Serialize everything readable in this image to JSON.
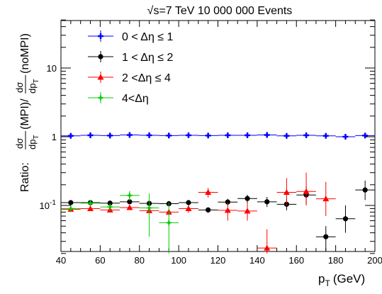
{
  "chart_data": {
    "type": "scatter",
    "title": "√s=7 TeV   10 000 000 Events",
    "xlabel": "p",
    "xlabel_sub": "T",
    "xlabel_unit": "(GeV)",
    "ylabel_prefix": "Ratio: ",
    "ylabel_mpi": "(MPI)/",
    "ylabel_nompi": "(noMPI)",
    "ylabel_frac_num": "dσ",
    "ylabel_frac_den": "dp",
    "ylabel_frac_sub": "T",
    "xlim": [
      40,
      200
    ],
    "ylim": [
      0.02,
      55
    ],
    "y_scale": "log",
    "x_ticks": [
      "40",
      "60",
      "80",
      "100",
      "120",
      "140",
      "160",
      "180",
      "200"
    ],
    "y_ticks": [
      "10",
      "1",
      "10"
    ],
    "y_tick_exp": "-1",
    "legend_position": "top-left",
    "series": [
      {
        "name": "0 < Δη ≤ 1",
        "color": "#0000ff",
        "marker": "cross",
        "x": [
          45,
          55,
          65,
          75,
          85,
          95,
          105,
          115,
          125,
          135,
          145,
          155,
          165,
          175,
          185,
          195
        ],
        "y": [
          1.03,
          1.05,
          1.04,
          1.06,
          1.05,
          1.04,
          1.05,
          1.04,
          1.05,
          1.05,
          1.06,
          1.03,
          1.05,
          1.03,
          1.0,
          1.04
        ],
        "y_low": [
          1.0,
          1.02,
          1.01,
          1.03,
          1.02,
          1.01,
          1.02,
          1.01,
          1.02,
          1.02,
          1.03,
          1.0,
          1.02,
          0.99,
          0.96,
          1.0
        ],
        "y_high": [
          1.06,
          1.08,
          1.07,
          1.09,
          1.08,
          1.07,
          1.08,
          1.07,
          1.08,
          1.08,
          1.09,
          1.06,
          1.08,
          1.07,
          1.04,
          1.08
        ]
      },
      {
        "name": "1 < Δη ≤ 2",
        "color": "#000000",
        "marker": "circle",
        "x": [
          45,
          55,
          65,
          75,
          85,
          95,
          105,
          115,
          125,
          135,
          145,
          155,
          165,
          175,
          185,
          195
        ],
        "y": [
          0.11,
          0.11,
          0.108,
          0.113,
          0.107,
          0.106,
          0.11,
          0.086,
          0.112,
          0.126,
          0.113,
          0.104,
          0.142,
          0.035,
          0.064,
          0.168
        ],
        "y_low": [
          0.105,
          0.104,
          0.101,
          0.105,
          0.099,
          0.097,
          0.1,
          0.078,
          0.1,
          0.11,
          0.095,
          0.085,
          0.105,
          0.022,
          0.04,
          0.12
        ],
        "y_high": [
          0.116,
          0.117,
          0.115,
          0.121,
          0.116,
          0.116,
          0.12,
          0.094,
          0.125,
          0.143,
          0.133,
          0.128,
          0.19,
          0.05,
          0.1,
          0.23
        ]
      },
      {
        "name": "2 <Δη ≤ 4",
        "color": "#ff0000",
        "marker": "triangle",
        "x": [
          45,
          55,
          65,
          75,
          85,
          95,
          105,
          115,
          125,
          135,
          145,
          155,
          165,
          175
        ],
        "y": [
          0.088,
          0.09,
          0.086,
          0.093,
          0.084,
          0.08,
          0.09,
          0.155,
          0.085,
          0.083,
          0.024,
          0.155,
          0.16,
          0.125
        ],
        "y_low": [
          0.083,
          0.085,
          0.081,
          0.087,
          0.077,
          0.072,
          0.078,
          0.13,
          0.06,
          0.06,
          0.02,
          0.1,
          0.1,
          0.07
        ],
        "y_high": [
          0.093,
          0.096,
          0.091,
          0.099,
          0.092,
          0.088,
          0.1,
          0.18,
          0.11,
          0.11,
          0.045,
          0.25,
          0.3,
          0.22
        ]
      },
      {
        "name": "4<Δη",
        "color": "#00cc00",
        "marker": "star",
        "x": [
          45,
          55,
          65,
          75,
          85,
          95
        ],
        "y": [
          0.09,
          0.108,
          0.095,
          0.14,
          0.092,
          0.056
        ],
        "y_low": [
          0.08,
          0.097,
          0.083,
          0.118,
          0.035,
          0.02
        ],
        "y_high": [
          0.1,
          0.12,
          0.107,
          0.162,
          0.15,
          0.11
        ]
      }
    ]
  }
}
